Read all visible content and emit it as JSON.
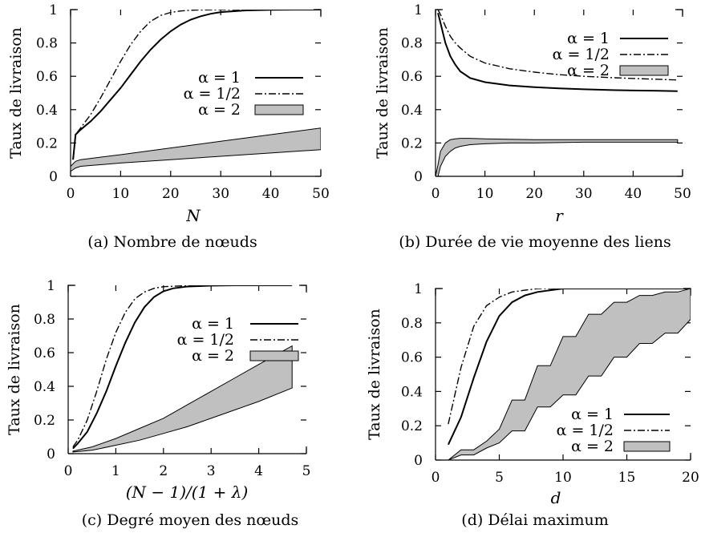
{
  "chart_data": [
    {
      "type": "line",
      "caption": "(a) Nombre de nœuds",
      "xlabel": "N",
      "ylabel": "Taux de livraison",
      "xlim": [
        0,
        50
      ],
      "ylim": [
        0,
        1
      ],
      "xticks": [
        "0",
        "10",
        "20",
        "30",
        "40",
        "50"
      ],
      "yticks": [
        "0",
        "0.2",
        "0.4",
        "0.6",
        "0.8",
        "1"
      ],
      "legend_position": "middle-right",
      "series": [
        {
          "name": "α = 1",
          "style": "solid",
          "x": [
            0.5,
            1,
            2,
            4,
            6,
            8,
            10,
            12,
            14,
            16,
            18,
            20,
            22,
            24,
            26,
            28,
            30,
            35,
            40,
            45,
            50
          ],
          "y": [
            0.1,
            0.25,
            0.28,
            0.33,
            0.39,
            0.46,
            0.53,
            0.61,
            0.69,
            0.76,
            0.82,
            0.87,
            0.91,
            0.94,
            0.96,
            0.975,
            0.985,
            0.995,
            0.999,
            1,
            1
          ]
        },
        {
          "name": "α = 1/2",
          "style": "dashdot",
          "x": [
            0.5,
            1,
            2,
            4,
            6,
            8,
            10,
            12,
            14,
            16,
            18,
            20,
            22,
            24,
            26,
            30,
            35,
            40,
            45,
            50
          ],
          "y": [
            0.1,
            0.25,
            0.29,
            0.37,
            0.47,
            0.58,
            0.69,
            0.79,
            0.87,
            0.93,
            0.965,
            0.983,
            0.992,
            0.996,
            0.998,
            1,
            1,
            1,
            1,
            1
          ]
        },
        {
          "name": "α = 2",
          "style": "band",
          "x": [
            0,
            1,
            2,
            10,
            20,
            30,
            40,
            50
          ],
          "lower": [
            0.03,
            0.05,
            0.06,
            0.08,
            0.1,
            0.12,
            0.14,
            0.16
          ],
          "upper": [
            0.06,
            0.09,
            0.1,
            0.13,
            0.17,
            0.21,
            0.25,
            0.29
          ]
        }
      ]
    },
    {
      "type": "line",
      "caption": "(b) Durée de vie moyenne des liens",
      "xlabel": "r",
      "ylabel": "Taux de livraison",
      "xlim": [
        0,
        50
      ],
      "ylim": [
        0,
        1
      ],
      "xticks": [
        "0",
        "10",
        "20",
        "30",
        "40",
        "50"
      ],
      "yticks": [
        "0",
        "0.2",
        "0.4",
        "0.6",
        "0.8",
        "1"
      ],
      "legend_position": "top-right",
      "series": [
        {
          "name": "α = 1",
          "style": "solid",
          "x": [
            0.5,
            1,
            2,
            3,
            4,
            5,
            7,
            10,
            15,
            20,
            25,
            30,
            35,
            40,
            45,
            49
          ],
          "y": [
            0.98,
            0.92,
            0.8,
            0.72,
            0.67,
            0.63,
            0.59,
            0.565,
            0.545,
            0.535,
            0.528,
            0.522,
            0.518,
            0.515,
            0.513,
            0.511
          ]
        },
        {
          "name": "α = 1/2",
          "style": "dashdot",
          "x": [
            0.5,
            1,
            2,
            3,
            4,
            5,
            7,
            10,
            15,
            20,
            25,
            30,
            35,
            40,
            45,
            49
          ],
          "y": [
            1,
            0.97,
            0.9,
            0.84,
            0.8,
            0.77,
            0.72,
            0.68,
            0.645,
            0.625,
            0.61,
            0.6,
            0.593,
            0.587,
            0.582,
            0.578
          ]
        },
        {
          "name": "α = 2",
          "style": "band",
          "x": [
            0,
            0.5,
            1,
            2,
            3,
            4,
            5,
            7,
            10,
            15,
            20,
            30,
            40,
            49
          ],
          "lower": [
            0,
            0,
            0.06,
            0.12,
            0.15,
            0.17,
            0.18,
            0.19,
            0.195,
            0.2,
            0.2,
            0.205,
            0.205,
            0.205
          ],
          "upper": [
            0,
            0.07,
            0.15,
            0.2,
            0.22,
            0.225,
            0.228,
            0.228,
            0.225,
            0.222,
            0.22,
            0.22,
            0.22,
            0.22
          ]
        }
      ]
    },
    {
      "type": "line",
      "caption": "(c) Degré moyen des nœuds",
      "xlabel": "(N − 1)/(1 + λ)",
      "ylabel": "Taux de livraison",
      "xlim": [
        0,
        5
      ],
      "ylim": [
        0,
        1
      ],
      "xticks": [
        "0",
        "1",
        "2",
        "3",
        "4",
        "5"
      ],
      "yticks": [
        "0",
        "0.2",
        "0.4",
        "0.6",
        "0.8",
        "1"
      ],
      "legend_position": "top-right",
      "series": [
        {
          "name": "α = 1",
          "style": "solid",
          "x": [
            0.1,
            0.2,
            0.4,
            0.6,
            0.8,
            1,
            1.2,
            1.4,
            1.6,
            1.8,
            2,
            2.2,
            2.5,
            3,
            3.5,
            4,
            4.7
          ],
          "y": [
            0.03,
            0.06,
            0.13,
            0.24,
            0.37,
            0.52,
            0.66,
            0.78,
            0.87,
            0.93,
            0.965,
            0.982,
            0.993,
            0.998,
            1,
            1,
            1
          ]
        },
        {
          "name": "α = 1/2",
          "style": "dashdot",
          "x": [
            0.1,
            0.2,
            0.4,
            0.6,
            0.8,
            1,
            1.2,
            1.4,
            1.6,
            1.8,
            2,
            2.5,
            3,
            4,
            4.7
          ],
          "y": [
            0.04,
            0.08,
            0.2,
            0.37,
            0.56,
            0.72,
            0.84,
            0.92,
            0.96,
            0.982,
            0.992,
            0.998,
            1,
            1,
            1
          ]
        },
        {
          "name": "α = 2",
          "style": "band",
          "x": [
            0.1,
            0.5,
            1,
            1.5,
            2,
            2.5,
            3,
            3.5,
            4,
            4.7
          ],
          "lower": [
            0.01,
            0.02,
            0.05,
            0.08,
            0.12,
            0.16,
            0.21,
            0.26,
            0.31,
            0.39
          ],
          "upper": [
            0.015,
            0.04,
            0.09,
            0.15,
            0.21,
            0.29,
            0.37,
            0.45,
            0.53,
            0.64
          ]
        }
      ]
    },
    {
      "type": "line",
      "caption": "(d) Délai maximum",
      "xlabel": "d",
      "ylabel": "Taux de livraison",
      "xlim": [
        0,
        20
      ],
      "ylim": [
        0,
        1
      ],
      "xticks": [
        "0",
        "5",
        "10",
        "15",
        "20"
      ],
      "yticks": [
        "0",
        "0.2",
        "0.4",
        "0.6",
        "0.8",
        "1"
      ],
      "legend_position": "bottom-right",
      "series": [
        {
          "name": "α = 1",
          "style": "solid",
          "x": [
            1,
            2,
            3,
            4,
            5,
            6,
            7,
            8,
            9,
            10,
            12,
            15,
            20
          ],
          "y": [
            0.09,
            0.25,
            0.48,
            0.69,
            0.84,
            0.92,
            0.96,
            0.98,
            0.99,
            1,
            1,
            1,
            1
          ]
        },
        {
          "name": "α = 1/2",
          "style": "dashdot",
          "x": [
            1,
            2,
            3,
            4,
            5,
            6,
            7,
            8,
            9,
            10,
            12,
            15,
            20
          ],
          "y": [
            0.21,
            0.54,
            0.78,
            0.9,
            0.95,
            0.98,
            0.99,
            1,
            1,
            1,
            1,
            1,
            1
          ]
        },
        {
          "name": "α = 2",
          "style": "band",
          "x": [
            1,
            2,
            3,
            4,
            5,
            6,
            7,
            8,
            9,
            10,
            11,
            12,
            13,
            14,
            15,
            16,
            17,
            18,
            19,
            20
          ],
          "lower": [
            0,
            0.03,
            0.03,
            0.07,
            0.1,
            0.17,
            0.17,
            0.31,
            0.31,
            0.38,
            0.38,
            0.49,
            0.49,
            0.6,
            0.6,
            0.68,
            0.68,
            0.74,
            0.74,
            0.82
          ],
          "upper": [
            0,
            0.06,
            0.06,
            0.11,
            0.18,
            0.35,
            0.35,
            0.55,
            0.55,
            0.72,
            0.72,
            0.85,
            0.85,
            0.92,
            0.92,
            0.96,
            0.96,
            0.98,
            0.98,
            1
          ]
        }
      ]
    }
  ]
}
